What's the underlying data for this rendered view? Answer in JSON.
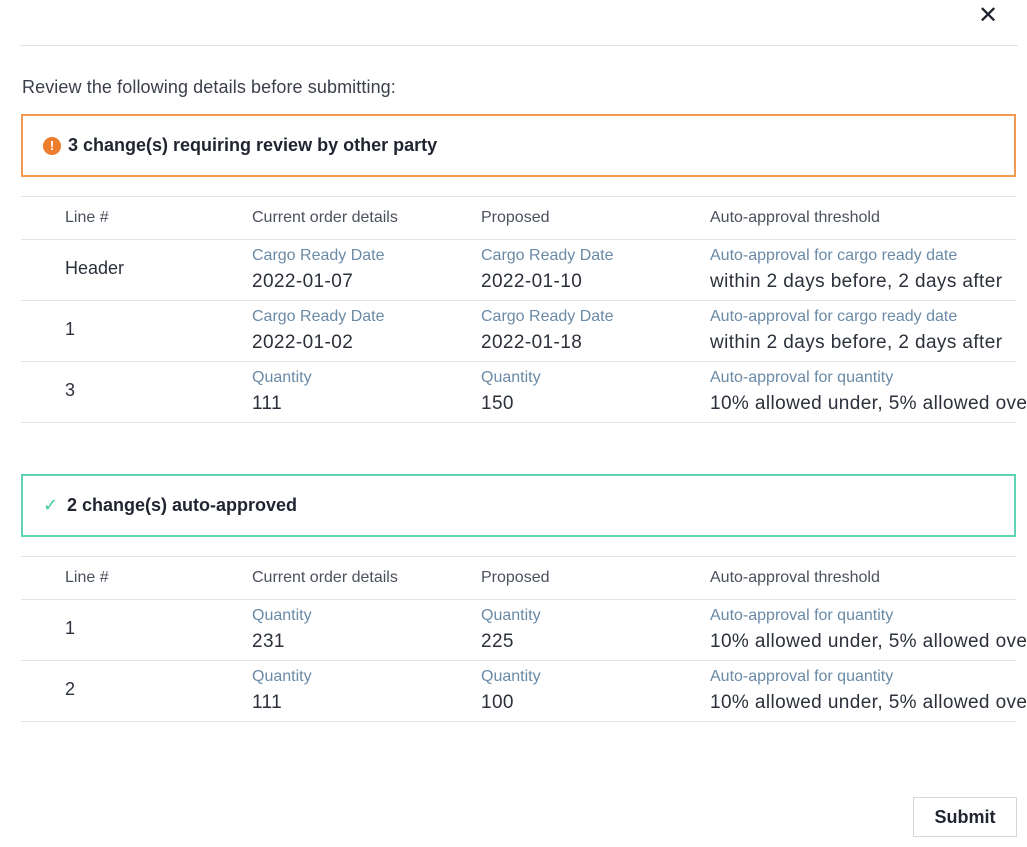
{
  "dialog": {
    "close_label": "✕",
    "intro": "Review the following details before submitting:",
    "submit_label": "Submit"
  },
  "icons": {
    "close": "close-icon",
    "warning": "exclamation-circle-icon",
    "check": "check-icon"
  },
  "colors": {
    "review_border": "#f29a52",
    "review_icon": "#ec7e2d",
    "approved_border": "#5fd3b6",
    "approved_icon": "#43c7a4",
    "label_blue": "#6a8aa6"
  },
  "review_section": {
    "icon_glyph": "!",
    "title": "3 change(s) requiring review by other party",
    "headers": [
      "Line #",
      "Current order details",
      "Proposed",
      "Auto-approval threshold"
    ],
    "rows": [
      {
        "line": "Header",
        "current_label": "Cargo Ready Date",
        "current_value": "2022-01-07",
        "proposed_label": "Cargo Ready Date",
        "proposed_value": "2022-01-10",
        "threshold_label": "Auto-approval for cargo ready date",
        "threshold_value": "within 2 days before, 2 days after"
      },
      {
        "line": "1",
        "current_label": "Cargo Ready Date",
        "current_value": "2022-01-02",
        "proposed_label": "Cargo Ready Date",
        "proposed_value": "2022-01-18",
        "threshold_label": "Auto-approval for cargo ready date",
        "threshold_value": "within 2 days before, 2 days after"
      },
      {
        "line": "3",
        "current_label": "Quantity",
        "current_value": "111",
        "proposed_label": "Quantity",
        "proposed_value": "150",
        "threshold_label": "Auto-approval for quantity",
        "threshold_value": "10% allowed under, 5% allowed ove"
      }
    ]
  },
  "approved_section": {
    "icon_glyph": "✓",
    "title": "2 change(s) auto-approved",
    "headers": [
      "Line #",
      "Current order details",
      "Proposed",
      "Auto-approval threshold"
    ],
    "rows": [
      {
        "line": "1",
        "current_label": "Quantity",
        "current_value": "231",
        "proposed_label": "Quantity",
        "proposed_value": "225",
        "threshold_label": "Auto-approval for quantity",
        "threshold_value": "10% allowed under, 5% allowed ove"
      },
      {
        "line": "2",
        "current_label": "Quantity",
        "current_value": "111",
        "proposed_label": "Quantity",
        "proposed_value": "100",
        "threshold_label": "Auto-approval for quantity",
        "threshold_value": "10% allowed under, 5% allowed ove"
      }
    ]
  }
}
